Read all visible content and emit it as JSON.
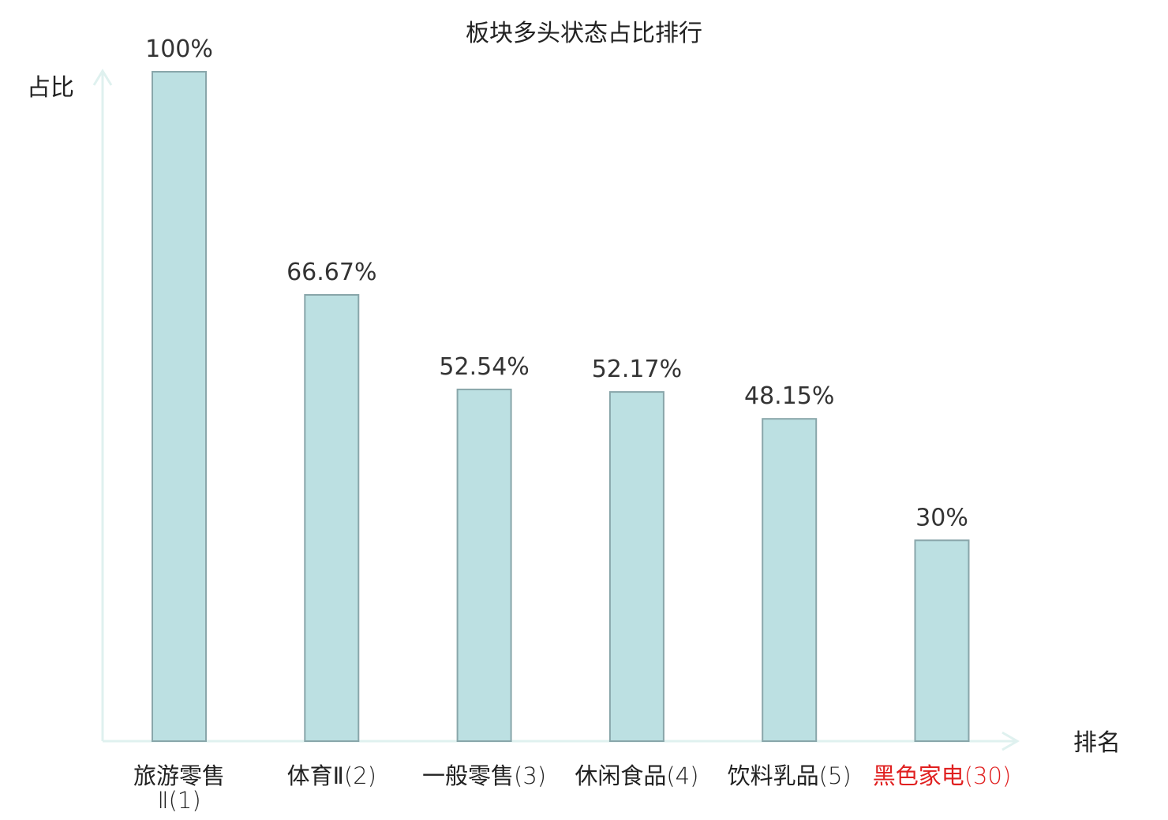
{
  "chart_data": {
    "type": "bar",
    "title": "板块多头状态占比排行",
    "ylabel": "占比",
    "xlabel": "排名",
    "ylim": [
      0,
      100
    ],
    "grid": false,
    "categories": [
      {
        "name": "旅游零售Ⅱ",
        "rank": "(1)",
        "highlight": false
      },
      {
        "name": "体育Ⅱ",
        "rank": "(2)",
        "highlight": false
      },
      {
        "name": "一般零售",
        "rank": "(3)",
        "highlight": false
      },
      {
        "name": "休闲食品",
        "rank": "(4)",
        "highlight": false
      },
      {
        "name": "饮料乳品",
        "rank": "(5)",
        "highlight": false
      },
      {
        "name": "黑色家电",
        "rank": "(30)",
        "highlight": true
      }
    ],
    "values": [
      100,
      66.67,
      52.54,
      52.17,
      48.15,
      30
    ],
    "value_labels": [
      "100%",
      "66.67%",
      "52.54%",
      "52.17%",
      "48.15%",
      "30%"
    ],
    "colors": {
      "bar_fill": "#bce0e2",
      "bar_stroke": "#89a6aa",
      "axis": "#dff1ef",
      "text": "#222222",
      "highlight": "#e02020"
    }
  }
}
